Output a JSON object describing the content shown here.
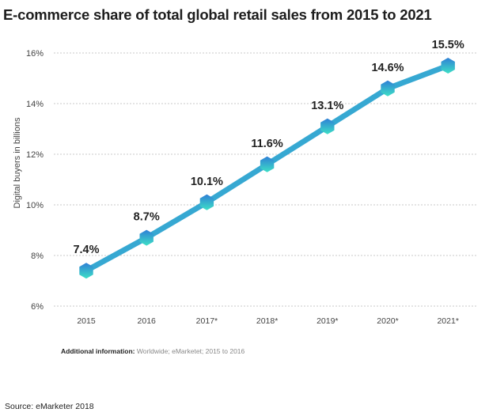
{
  "chart_data": {
    "type": "line",
    "title": "E-commerce share of total global retail sales from 2015 to 2021",
    "ylabel": "Digital buyers in billions",
    "xlabel": "",
    "categories": [
      "2015",
      "2016",
      "2017*",
      "2018*",
      "2019*",
      "2020*",
      "2021*"
    ],
    "values": [
      7.4,
      8.7,
      10.1,
      11.6,
      13.1,
      14.6,
      15.5
    ],
    "data_labels": [
      "7.4%",
      "8.7%",
      "10.1%",
      "11.6%",
      "13.1%",
      "14.6%",
      "15.5%"
    ],
    "yticks": [
      6,
      8,
      10,
      12,
      14,
      16
    ],
    "ytick_labels": [
      "6%",
      "8%",
      "10%",
      "12%",
      "14%",
      "16%"
    ],
    "ylim": [
      6,
      16
    ],
    "grid": "horizontal dashed",
    "legend": "none",
    "colors": {
      "line": "#36a8d2",
      "marker_top": "#2f7fd6",
      "marker_bottom": "#3de0c6"
    }
  },
  "note": {
    "label": "Additional information:",
    "text": " Worldwide; eMarketet; 2015 to 2016"
  },
  "source": "Source: eMarketer 2018"
}
